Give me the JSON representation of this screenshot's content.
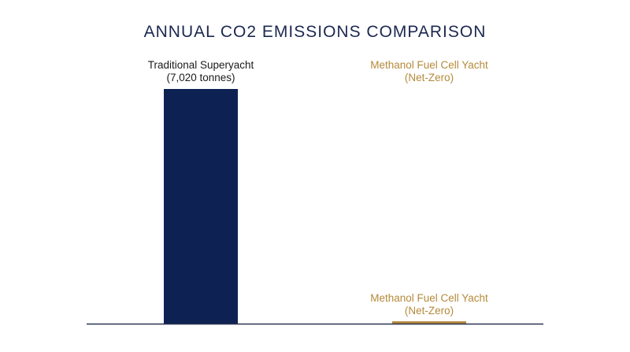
{
  "chart_data": {
    "type": "bar",
    "title": "ANNUAL CO2 EMISSIONS COMPARISON",
    "xlabel": "",
    "ylabel": "",
    "ylim": [
      0,
      7020
    ],
    "grid": false,
    "categories": [
      "Traditional Superyacht",
      "Methanol Fuel Cell Yacht"
    ],
    "values": [
      7020,
      0
    ],
    "top_labels": [
      [
        "Traditional Superyacht",
        "(7,020 tonnes)"
      ],
      [
        "Methanol Fuel Cell Yacht",
        "(Net-Zero)"
      ]
    ],
    "base_label": [
      "Methanol Fuel Cell Yacht",
      "(Net-Zero)"
    ]
  },
  "colors": {
    "title": "#1c2850",
    "bars": [
      "#0d2252",
      "#b58a3a"
    ],
    "labels": [
      "#1b1b1b",
      "#b58a3a"
    ],
    "axis": "#2a3350"
  }
}
